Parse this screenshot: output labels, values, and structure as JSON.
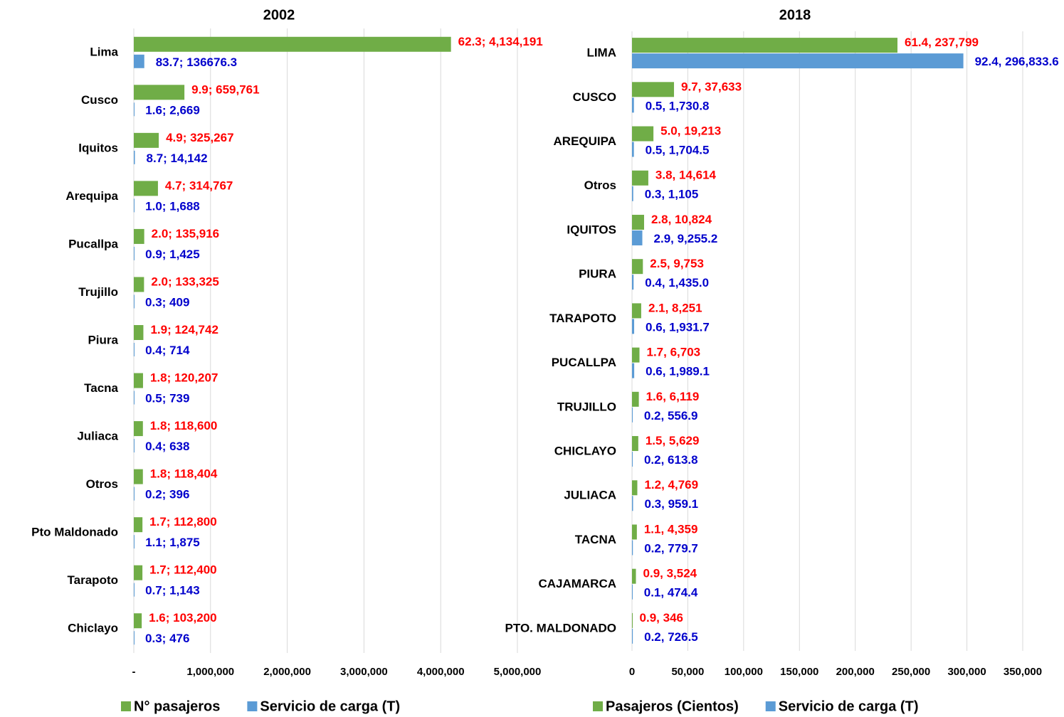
{
  "chart_data": [
    {
      "type": "bar",
      "title": "2002",
      "legend": "bottom",
      "grid": true,
      "categories": [
        "Lima",
        "Cusco",
        "Iquitos",
        "Arequipa",
        "Pucallpa",
        "Trujillo",
        "Piura",
        "Tacna",
        "Juliaca",
        "Otros",
        "Pto Maldonado",
        "Tarapoto",
        "Chiclayo"
      ],
      "series": [
        {
          "name": "N° pasajeros",
          "color": "#70ad47",
          "label_color": "#ff0000",
          "values": [
            4134191,
            659761,
            325267,
            314767,
            135916,
            133325,
            124742,
            120207,
            118600,
            118404,
            112800,
            112400,
            103200
          ],
          "value_labels": [
            "62.3; 4,134,191",
            "9.9; 659,761",
            "4.9; 325,267",
            "4.7; 314,767",
            "2.0; 135,916",
            "2.0; 133,325",
            "1.9; 124,742",
            "1.8; 120,207",
            "1.8; 118,600",
            "1.8; 118,404",
            "1.7; 112,800",
            "1.7; 112,400",
            "1.6; 103,200"
          ]
        },
        {
          "name": "Servicio de carga (T)",
          "color": "#5b9bd5",
          "label_color": "#0000cc",
          "values": [
            136676.3,
            2669,
            14142,
            1688,
            1425,
            409,
            714,
            739,
            638,
            396,
            1875,
            1143,
            476
          ],
          "value_labels": [
            "83.7; 136676.3",
            "1.6; 2,669",
            "8.7; 14,142",
            "1.0; 1,688",
            "0.9; 1,425",
            "0.3; 409",
            "0.4; 714",
            "0.5; 739",
            "0.4; 638",
            "0.2; 396",
            "1.1; 1,875",
            "0.7; 1,143",
            "0.3; 476"
          ]
        }
      ],
      "xlim": [
        0,
        5000000
      ],
      "xticks": [
        {
          "value": 0,
          "label": "-"
        },
        {
          "value": 1000000,
          "label": "1,000,000"
        },
        {
          "value": 2000000,
          "label": "2,000,000"
        },
        {
          "value": 3000000,
          "label": "3,000,000"
        },
        {
          "value": 4000000,
          "label": "4,000,000"
        },
        {
          "value": 5000000,
          "label": "5,000,000"
        }
      ]
    },
    {
      "type": "bar",
      "title": "2018",
      "legend": "bottom",
      "grid": true,
      "categories": [
        "LIMA",
        "CUSCO",
        "AREQUIPA",
        "Otros",
        "IQUITOS",
        "PIURA",
        "TARAPOTO",
        "PUCALLPA",
        "TRUJILLO",
        "CHICLAYO",
        "JULIACA",
        "TACNA",
        "CAJAMARCA",
        "PTO. MALDONADO"
      ],
      "series": [
        {
          "name": "Pasajeros (Cientos)",
          "color": "#70ad47",
          "label_color": "#ff0000",
          "values": [
            237799,
            37633,
            19213,
            14614,
            10824,
            9753,
            8251,
            6703,
            6119,
            5629,
            4769,
            4359,
            3524,
            346
          ],
          "value_labels": [
            "61.4, 237,799",
            "9.7, 37,633",
            "5.0, 19,213",
            "3.8, 14,614",
            "2.8, 10,824",
            "2.5, 9,753",
            "2.1, 8,251",
            "1.7, 6,703",
            "1.6, 6,119",
            "1.5, 5,629",
            "1.2, 4,769",
            "1.1, 4,359",
            "0.9, 3,524",
            "0.9, 346"
          ]
        },
        {
          "name": "Servicio de carga (T)",
          "color": "#5b9bd5",
          "label_color": "#0000cc",
          "values": [
            296833.6,
            1730.8,
            1704.5,
            1105,
            9255.2,
            1435.0,
            1931.7,
            1989.1,
            556.9,
            613.8,
            959.1,
            779.7,
            474.4,
            726.5
          ],
          "value_labels": [
            "92.4, 296,833.6",
            "0.5, 1,730.8",
            "0.5, 1,704.5",
            "0.3, 1,105",
            "2.9, 9,255.2",
            "0.4, 1,435.0",
            "0.6, 1,931.7",
            "0.6, 1,989.1",
            "0.2, 556.9",
            "0.2, 613.8",
            "0.3, 959.1",
            "0.2, 779.7",
            "0.1, 474.4",
            "0.2, 726.5"
          ]
        }
      ],
      "xlim": [
        0,
        350000
      ],
      "xticks": [
        0,
        {
          "value": 50000,
          "label": "50,000"
        },
        {
          "value": 100000,
          "label": "100,000"
        },
        {
          "value": 150000,
          "label": "150,000"
        },
        {
          "value": 200000,
          "label": "200,000"
        },
        {
          "value": 250000,
          "label": "250,000"
        },
        {
          "value": 300000,
          "label": "300,000"
        },
        {
          "value": 350000,
          "label": "350,000"
        }
      ]
    }
  ]
}
